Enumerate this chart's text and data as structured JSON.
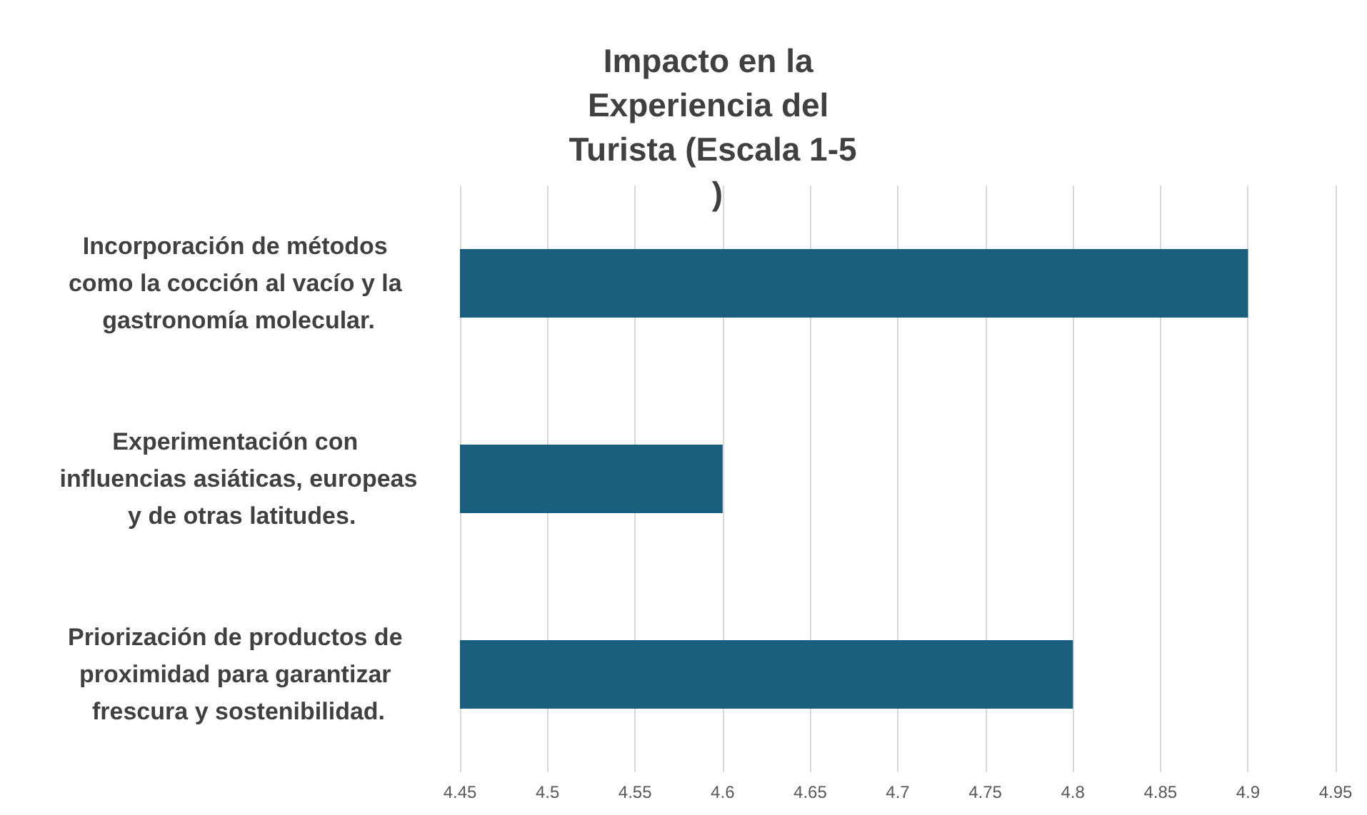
{
  "chart_data": {
    "type": "bar",
    "orientation": "horizontal",
    "title": "Impacto en la Experiencia del Turista (Escala 1-5 )",
    "categories": [
      "Incorporación de métodos como la cocción al vacío y la gastronomía molecular.",
      "Experimentación con influencias asiáticas, europeas y de otras latitudes.",
      "Priorización de productos de proximidad para garantizar frescura y sostenibilidad."
    ],
    "values": [
      4.9,
      4.6,
      4.8
    ],
    "color": "#1a5e7e",
    "xlim": [
      4.45,
      4.95
    ],
    "xticks": [
      4.45,
      4.5,
      4.55,
      4.6,
      4.65,
      4.7,
      4.75,
      4.8,
      4.85,
      4.9,
      4.95
    ],
    "grid": "x"
  }
}
